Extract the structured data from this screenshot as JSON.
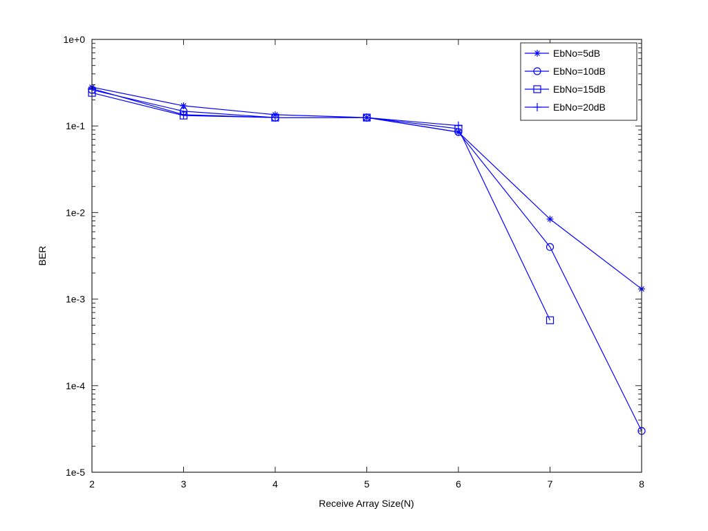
{
  "chart_data": {
    "type": "line",
    "title": "",
    "xlabel": "Receive Array Size(N)",
    "ylabel": "BER",
    "yscale": "log",
    "xlim": [
      2,
      8
    ],
    "ylim": [
      1e-05,
      1
    ],
    "x_ticks": [
      "2",
      "3",
      "4",
      "5",
      "6",
      "7",
      "8"
    ],
    "y_ticks": [
      "1e+0",
      "1e-1",
      "1e-2",
      "1e-3",
      "1e-4",
      "1e-5"
    ],
    "grid": false,
    "legend_position": "upper right",
    "line_color": "#0000ff",
    "series": [
      {
        "name": "EbNo=5dB",
        "marker": "star",
        "x": [
          2,
          3,
          4,
          5,
          6,
          7,
          8
        ],
        "values": [
          0.281,
          0.171,
          0.135,
          0.125,
          0.085,
          0.0084,
          0.00131
        ]
      },
      {
        "name": "EbNo=10dB",
        "marker": "circle",
        "x": [
          2,
          3,
          4,
          5,
          6,
          7,
          8
        ],
        "values": [
          0.261,
          0.148,
          0.125,
          0.125,
          0.085,
          0.004,
          3e-05
        ]
      },
      {
        "name": "EbNo=15dB",
        "marker": "square",
        "x": [
          2,
          3,
          4,
          5,
          6,
          7
        ],
        "values": [
          0.242,
          0.132,
          0.125,
          0.125,
          0.093,
          0.00057
        ]
      },
      {
        "name": "EbNo=20dB",
        "marker": "plus",
        "x": [
          2,
          3,
          4,
          5,
          6
        ],
        "values": [
          0.27,
          0.135,
          0.125,
          0.125,
          0.101
        ]
      }
    ]
  }
}
